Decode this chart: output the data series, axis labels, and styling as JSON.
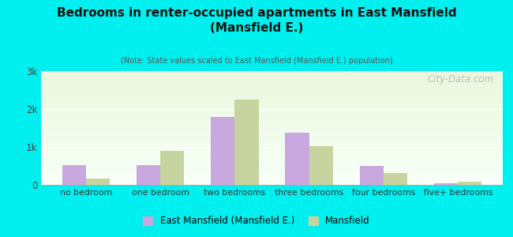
{
  "title": "Bedrooms in renter-occupied apartments in East Mansfield\n(Mansfield E.)",
  "subtitle": "(Note: State values scaled to East Mansfield (Mansfield E.) population)",
  "categories": [
    "no bedroom",
    "one bedroom",
    "two bedrooms",
    "three bedrooms",
    "four bedrooms",
    "five+ bedrooms"
  ],
  "east_mansfield": [
    530,
    530,
    1800,
    1380,
    510,
    40
  ],
  "mansfield": [
    175,
    900,
    2250,
    1020,
    310,
    75
  ],
  "bar_color_em": "#c9a8e0",
  "bar_color_m": "#c8d4a0",
  "background_color": "#00efef",
  "ylim": [
    0,
    3000
  ],
  "yticks": [
    0,
    1000,
    2000,
    3000
  ],
  "ytick_labels": [
    "0",
    "1k",
    "2k",
    "3k"
  ],
  "legend_em": "East Mansfield (Mansfield E.)",
  "legend_m": "Mansfield",
  "watermark": "City-Data.com"
}
